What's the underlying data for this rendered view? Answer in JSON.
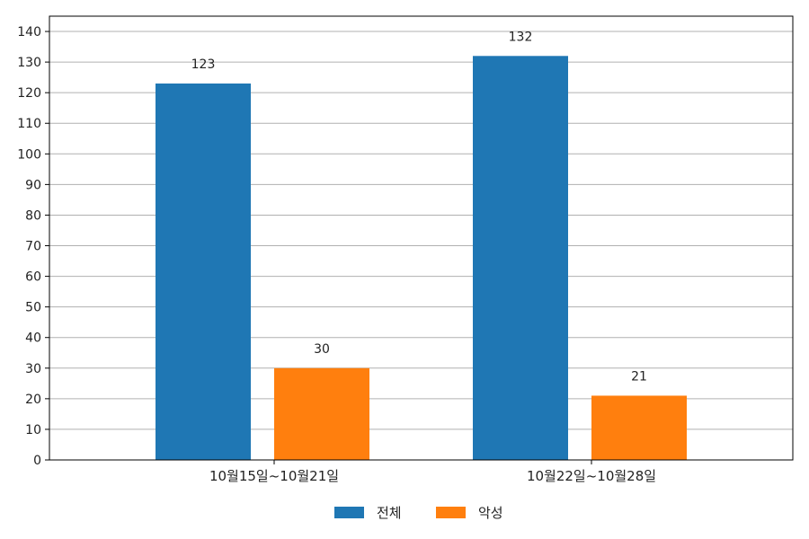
{
  "chart_data": {
    "type": "bar",
    "categories": [
      "10월15일~10월21일",
      "10월22일~10월28일"
    ],
    "series": [
      {
        "name": "전체",
        "values": [
          123,
          132
        ],
        "color": "#1f77b4"
      },
      {
        "name": "악성",
        "values": [
          30,
          21
        ],
        "color": "#ff7f0e"
      }
    ],
    "ylim": [
      0,
      145
    ],
    "yticks": [
      0,
      10,
      20,
      30,
      40,
      50,
      60,
      70,
      80,
      90,
      100,
      110,
      120,
      130,
      140
    ],
    "grid": true,
    "legend_position": "bottom-center",
    "title": "",
    "xlabel": "",
    "ylabel": ""
  }
}
